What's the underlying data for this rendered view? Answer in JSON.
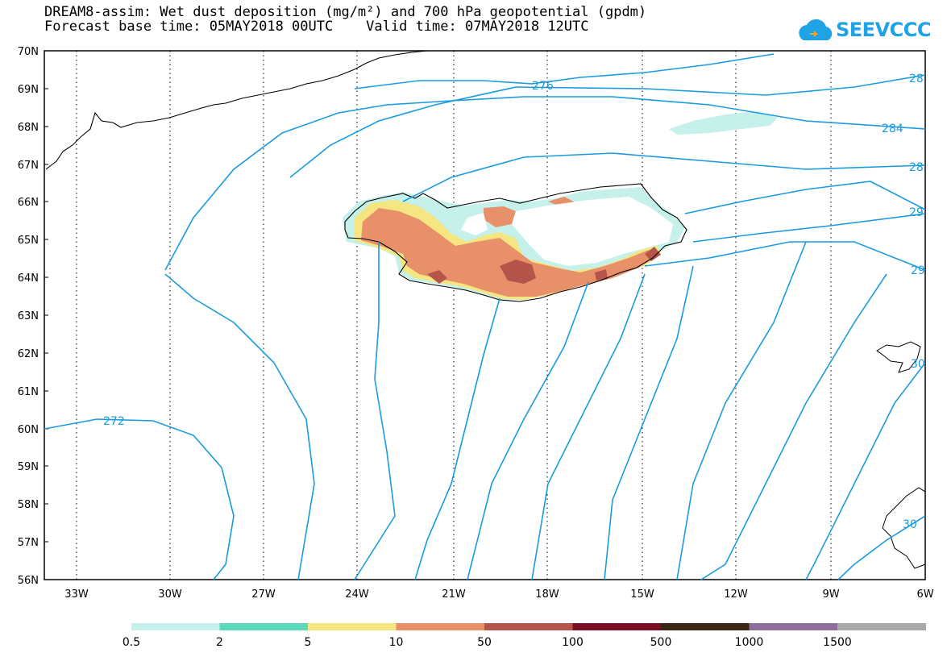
{
  "title_line1": "DREAM8-assim: Wet dust deposition (mg/m²) and 700 hPa geopotential (gpdm)",
  "title_line2": "Forecast base time: 05MAY2018 00UTC    Valid time: 07MAY2018 12UTC",
  "logo_text": "SEEVCCC",
  "logo_icon": "cloud-icon",
  "lat_labels": [
    "70N",
    "69N",
    "68N",
    "67N",
    "66N",
    "65N",
    "64N",
    "63N",
    "62N",
    "61N",
    "60N",
    "59N",
    "58N",
    "57N",
    "56N"
  ],
  "lon_labels": [
    "33W",
    "30W",
    "27W",
    "24W",
    "21W",
    "18W",
    "15W",
    "12W",
    "9W",
    "6W"
  ],
  "contour_labels": [
    "276",
    "28",
    "284",
    "28",
    "29",
    "29",
    "30",
    "30",
    "272"
  ],
  "colorbar": {
    "labels": [
      "0.5",
      "2",
      "5",
      "10",
      "50",
      "100",
      "500",
      "1000",
      "1500"
    ],
    "colors": [
      "#c6f0ea",
      "#5cd9b8",
      "#f5e681",
      "#e7906a",
      "#b5544a",
      "#7a0e25",
      "#3a2615",
      "#8e6f9b",
      "#a9a9a9"
    ]
  },
  "colors": {
    "contour": "#1a9be0",
    "brand": "#1ea3e6",
    "iceland_fill": "#ffffff"
  }
}
